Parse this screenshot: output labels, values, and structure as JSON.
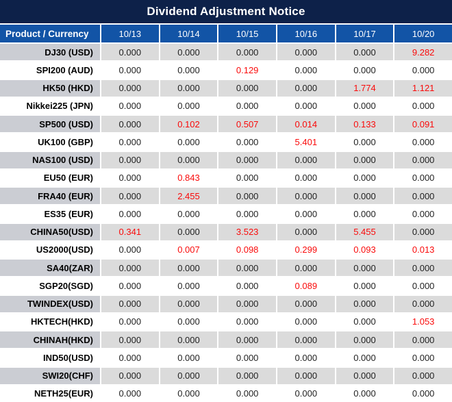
{
  "title": "Dividend Adjustment Notice",
  "colors": {
    "title_bar_navy": "#0D2149",
    "header_blue": "#1254A6",
    "row_gray_first_col": "#CBCDD3",
    "row_gray_value_col": "#DBDBDB",
    "value_text": "#1F1F1F",
    "highlight_red": "#FA0A0A"
  },
  "table": {
    "product_header": "Product / Currency",
    "date_headers": [
      "10/13",
      "10/14",
      "10/15",
      "10/16",
      "10/17",
      "10/20"
    ],
    "rows": [
      {
        "product": "DJ30 (USD)",
        "values": [
          "0.000",
          "0.000",
          "0.000",
          "0.000",
          "0.000",
          "9.282"
        ],
        "reds": [
          false,
          false,
          false,
          false,
          false,
          true
        ]
      },
      {
        "product": "SPI200 (AUD)",
        "values": [
          "0.000",
          "0.000",
          "0.129",
          "0.000",
          "0.000",
          "0.000"
        ],
        "reds": [
          false,
          false,
          true,
          false,
          false,
          false
        ]
      },
      {
        "product": "HK50 (HKD)",
        "values": [
          "0.000",
          "0.000",
          "0.000",
          "0.000",
          "1.774",
          "1.121"
        ],
        "reds": [
          false,
          false,
          false,
          false,
          true,
          true
        ]
      },
      {
        "product": "Nikkei225 (JPN)",
        "values": [
          "0.000",
          "0.000",
          "0.000",
          "0.000",
          "0.000",
          "0.000"
        ],
        "reds": [
          false,
          false,
          false,
          false,
          false,
          false
        ]
      },
      {
        "product": "SP500 (USD)",
        "values": [
          "0.000",
          "0.102",
          "0.507",
          "0.014",
          "0.133",
          "0.091"
        ],
        "reds": [
          false,
          true,
          true,
          true,
          true,
          true
        ]
      },
      {
        "product": "UK100 (GBP)",
        "values": [
          "0.000",
          "0.000",
          "0.000",
          "5.401",
          "0.000",
          "0.000"
        ],
        "reds": [
          false,
          false,
          false,
          true,
          false,
          false
        ]
      },
      {
        "product": "NAS100 (USD)",
        "values": [
          "0.000",
          "0.000",
          "0.000",
          "0.000",
          "0.000",
          "0.000"
        ],
        "reds": [
          false,
          false,
          false,
          false,
          false,
          false
        ]
      },
      {
        "product": "EU50 (EUR)",
        "values": [
          "0.000",
          "0.843",
          "0.000",
          "0.000",
          "0.000",
          "0.000"
        ],
        "reds": [
          false,
          true,
          false,
          false,
          false,
          false
        ]
      },
      {
        "product": "FRA40 (EUR)",
        "values": [
          "0.000",
          "2.455",
          "0.000",
          "0.000",
          "0.000",
          "0.000"
        ],
        "reds": [
          false,
          true,
          false,
          false,
          false,
          false
        ]
      },
      {
        "product": "ES35 (EUR)",
        "values": [
          "0.000",
          "0.000",
          "0.000",
          "0.000",
          "0.000",
          "0.000"
        ],
        "reds": [
          false,
          false,
          false,
          false,
          false,
          false
        ]
      },
      {
        "product": "CHINA50(USD)",
        "values": [
          "0.341",
          "0.000",
          "3.523",
          "0.000",
          "5.455",
          "0.000"
        ],
        "reds": [
          true,
          false,
          true,
          false,
          true,
          false
        ]
      },
      {
        "product": "US2000(USD)",
        "values": [
          "0.000",
          "0.007",
          "0.098",
          "0.299",
          "0.093",
          "0.013"
        ],
        "reds": [
          false,
          true,
          true,
          true,
          true,
          true
        ]
      },
      {
        "product": "SA40(ZAR)",
        "values": [
          "0.000",
          "0.000",
          "0.000",
          "0.000",
          "0.000",
          "0.000"
        ],
        "reds": [
          false,
          false,
          false,
          false,
          false,
          false
        ]
      },
      {
        "product": "SGP20(SGD)",
        "values": [
          "0.000",
          "0.000",
          "0.000",
          "0.089",
          "0.000",
          "0.000"
        ],
        "reds": [
          false,
          false,
          false,
          true,
          false,
          false
        ]
      },
      {
        "product": "TWINDEX(USD)",
        "values": [
          "0.000",
          "0.000",
          "0.000",
          "0.000",
          "0.000",
          "0.000"
        ],
        "reds": [
          false,
          false,
          false,
          false,
          false,
          false
        ]
      },
      {
        "product": "HKTECH(HKD)",
        "values": [
          "0.000",
          "0.000",
          "0.000",
          "0.000",
          "0.000",
          "1.053"
        ],
        "reds": [
          false,
          false,
          false,
          false,
          false,
          true
        ]
      },
      {
        "product": "CHINAH(HKD)",
        "values": [
          "0.000",
          "0.000",
          "0.000",
          "0.000",
          "0.000",
          "0.000"
        ],
        "reds": [
          false,
          false,
          false,
          false,
          false,
          false
        ]
      },
      {
        "product": "IND50(USD)",
        "values": [
          "0.000",
          "0.000",
          "0.000",
          "0.000",
          "0.000",
          "0.000"
        ],
        "reds": [
          false,
          false,
          false,
          false,
          false,
          false
        ]
      },
      {
        "product": "SWI20(CHF)",
        "values": [
          "0.000",
          "0.000",
          "0.000",
          "0.000",
          "0.000",
          "0.000"
        ],
        "reds": [
          false,
          false,
          false,
          false,
          false,
          false
        ]
      },
      {
        "product": "NETH25(EUR)",
        "values": [
          "0.000",
          "0.000",
          "0.000",
          "0.000",
          "0.000",
          "0.000"
        ],
        "reds": [
          false,
          false,
          false,
          false,
          false,
          false
        ]
      }
    ]
  }
}
